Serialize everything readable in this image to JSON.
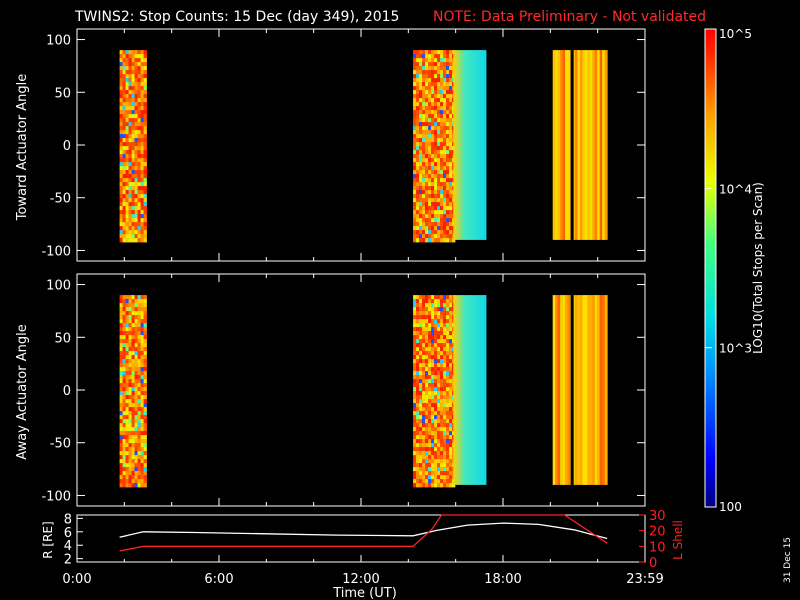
{
  "title": {
    "main": "TWINS2: Stop Counts: 15 Dec (day 349), 2015",
    "note": "NOTE: Data Preliminary - Not validated",
    "note_color": "#ff2a2a"
  },
  "side_label": "31 Dec 15",
  "colorbar": {
    "label": "LOG10(Total Stops per Scan)",
    "ticks": [
      "10^5",
      "10^4",
      "10^3",
      "100"
    ],
    "scale": "log"
  },
  "chart_data": [
    {
      "type": "heatmap",
      "name": "top-panel",
      "ylabel": "Toward Actuator Angle",
      "yticks": [
        "100",
        "50",
        "0",
        "-50",
        "-100"
      ],
      "ylim": [
        -110,
        110
      ],
      "xlim": [
        0,
        24
      ],
      "blocks": [
        {
          "start": 1.8,
          "end": 2.9,
          "pattern": "banded-red-yellow"
        },
        {
          "start": 14.2,
          "end": 15.9,
          "pattern": "banded-red-yellow"
        },
        {
          "start": 15.9,
          "end": 17.3,
          "pattern": "cyan-gradient"
        },
        {
          "start": 20.1,
          "end": 22.4,
          "pattern": "vertical-yellow-orange"
        }
      ]
    },
    {
      "type": "heatmap",
      "name": "bottom-panel",
      "ylabel": "Away Actuator Angle",
      "yticks": [
        "100",
        "50",
        "0",
        "-50",
        "-100"
      ],
      "ylim": [
        -110,
        110
      ],
      "xlim": [
        0,
        24
      ],
      "blocks": [
        {
          "start": 1.8,
          "end": 2.9,
          "pattern": "banded-red-yellow"
        },
        {
          "start": 14.2,
          "end": 15.9,
          "pattern": "banded-red-yellow"
        },
        {
          "start": 15.9,
          "end": 17.3,
          "pattern": "cyan-gradient"
        },
        {
          "start": 20.1,
          "end": 22.4,
          "pattern": "vertical-yellow-orange"
        }
      ]
    },
    {
      "type": "line",
      "name": "orbit-panel",
      "ylabel_left": "R [RE]",
      "ylabel_right": "L Shell",
      "yticks_left": [
        "8",
        "6",
        "4",
        "2"
      ],
      "yticks_right": [
        "30",
        "20",
        "10",
        "0"
      ],
      "ylim_left": [
        1.5,
        8.5
      ],
      "ylim_right": [
        0,
        30
      ],
      "xlabel": "Time (UT)",
      "xticks": [
        "0:00",
        "6:00",
        "12:00",
        "18:00",
        "23:59"
      ],
      "series": [
        {
          "color": "#ffffff",
          "x": [
            1.8,
            2.8,
            5,
            8,
            11,
            14.2,
            15.2,
            16.5,
            18,
            19.5,
            21,
            22.4
          ],
          "y": [
            5.2,
            6.0,
            5.9,
            5.7,
            5.5,
            5.4,
            6.2,
            7.0,
            7.3,
            7.1,
            6.3,
            5.0
          ]
        },
        {
          "color": "#ff2020",
          "x": [
            1.8,
            2.8,
            5,
            8,
            11,
            14.2,
            15.0,
            15.4,
            20.6,
            22.4
          ],
          "y": [
            7,
            10,
            10,
            10,
            10,
            10,
            21,
            30,
            30,
            12
          ]
        }
      ]
    }
  ]
}
